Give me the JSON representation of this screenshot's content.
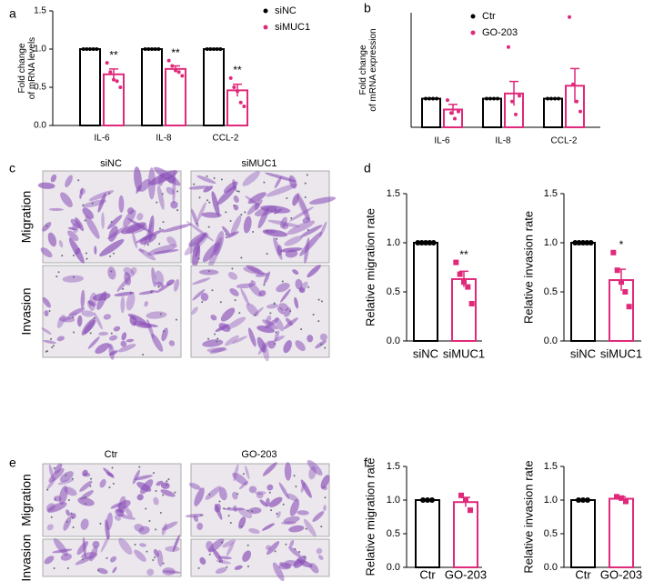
{
  "panel_letters": [
    "a",
    "b",
    "c",
    "d",
    "e",
    "f"
  ],
  "micrographs": [
    {
      "columns": [
        "siNC",
        "siMUC1"
      ],
      "rows": [
        "Migration",
        "Invasion"
      ]
    },
    {
      "columns": [
        "Ctr",
        "GO-203"
      ],
      "rows": [
        "Migration",
        "Invasion"
      ]
    }
  ],
  "chart_data": [
    {
      "type": "bar",
      "ylabel": [
        "Fold change",
        "of  mRNA levels"
      ],
      "categories": [
        "IL-6",
        "IL-8",
        "CCL-2"
      ],
      "series": [
        {
          "name": "siNC",
          "color": "#000000",
          "values": [
            1.0,
            1.0,
            1.0
          ],
          "points": [
            [
              1,
              1,
              1,
              1,
              1
            ],
            [
              1,
              1,
              1,
              1,
              1
            ],
            [
              1,
              1,
              1,
              1,
              1
            ]
          ]
        },
        {
          "name": "siMUC1",
          "color": "#e0297a",
          "values": [
            0.67,
            0.74,
            0.46
          ],
          "errors": [
            0.07,
            0.04,
            0.08
          ],
          "annotations": [
            "**",
            "**",
            "**"
          ],
          "points": [
            [
              0.82,
              0.7,
              0.6,
              0.58,
              0.5
            ],
            [
              0.85,
              0.78,
              0.72,
              0.7,
              0.65
            ],
            [
              0.62,
              0.5,
              0.45,
              0.3,
              0.25
            ]
          ]
        }
      ],
      "ylim": [
        0,
        1.5
      ],
      "yticks": [
        {
          "value": 0,
          "label": "0.0"
        },
        0.5,
        {
          "value": 1,
          "label": "1.0"
        },
        1.5
      ]
    },
    {
      "type": "bar",
      "ylabel": [
        "Fold change",
        "of mRNA expression"
      ],
      "categories": [
        "IL-6",
        "IL-8",
        "CCL-2"
      ],
      "series": [
        {
          "name": "Ctr",
          "color": "#000000",
          "values": [
            1.0,
            1.0,
            1.0
          ],
          "points": [
            [
              1,
              1,
              1,
              1
            ],
            [
              1,
              1,
              1,
              1
            ],
            [
              1,
              1,
              1,
              1
            ]
          ]
        },
        {
          "name": "GO-203",
          "color": "#e0297a",
          "values": [
            0.62,
            1.18,
            1.45
          ],
          "errors": [
            0.18,
            0.42,
            0.6
          ],
          "points": [
            [
              0.95,
              0.5,
              0.3,
              0.55
            ],
            [
              2.8,
              0.9,
              0.45,
              1.1
            ],
            [
              3.85,
              1.5,
              0.9,
              0.55
            ]
          ]
        }
      ],
      "ylim": [
        0,
        4
      ]
    },
    {
      "type": "bar",
      "ylabel": [
        "Relative migration rate"
      ],
      "categories": [
        "siNC",
        "siMUC1"
      ],
      "values": [
        1.0,
        0.63
      ],
      "errors": [
        null,
        0.08
      ],
      "colors": [
        "#000000",
        "#e0297a"
      ],
      "annotations": [
        null,
        "**"
      ],
      "points": [
        [
          1,
          1,
          1,
          1,
          1
        ],
        [
          0.8,
          0.68,
          0.6,
          0.55,
          0.38
        ]
      ],
      "ylim": [
        0,
        1.5
      ],
      "yticks": [
        {
          "value": 0,
          "label": "0.0"
        },
        0.5,
        {
          "value": 1,
          "label": "1.0"
        },
        1.5
      ]
    },
    {
      "type": "bar",
      "ylabel": [
        "Relative invasion rate"
      ],
      "categories": [
        "siNC",
        "siMUC1"
      ],
      "values": [
        1.0,
        0.62
      ],
      "errors": [
        null,
        0.11
      ],
      "colors": [
        "#000000",
        "#e0297a"
      ],
      "annotations": [
        null,
        "*"
      ],
      "points": [
        [
          1,
          1,
          1,
          1,
          1
        ],
        [
          0.9,
          0.72,
          0.6,
          0.5,
          0.35
        ]
      ],
      "ylim": [
        0,
        1.5
      ],
      "yticks": [
        {
          "value": 0,
          "label": "0.0"
        },
        0.5,
        {
          "value": 1,
          "label": "1.0"
        },
        1.5
      ]
    },
    {
      "type": "bar",
      "ylabel": [
        "Relative migration rate"
      ],
      "categories": [
        "Ctr",
        "GO-203"
      ],
      "values": [
        1.0,
        0.97
      ],
      "errors": [
        null,
        0.07
      ],
      "colors": [
        "#000000",
        "#e0297a"
      ],
      "points": [
        [
          1,
          1,
          1
        ],
        [
          1.07,
          1.0,
          0.85
        ]
      ],
      "ylim": [
        0,
        1.5
      ],
      "yticks": [
        {
          "value": 0,
          "label": "0.0"
        },
        0.5,
        {
          "value": 1,
          "label": "1.0"
        },
        1.5
      ]
    },
    {
      "type": "bar",
      "ylabel": [
        "Relative invasion rate"
      ],
      "categories": [
        "Ctr",
        "GO-203"
      ],
      "values": [
        1.0,
        1.02
      ],
      "errors": [
        null,
        0.03
      ],
      "colors": [
        "#000000",
        "#e0297a"
      ],
      "points": [
        [
          1,
          1,
          1
        ],
        [
          1.05,
          1.03,
          0.98
        ]
      ],
      "ylim": [
        0,
        1.5
      ],
      "yticks": [
        {
          "value": 0,
          "label": "0.0"
        },
        0.5,
        {
          "value": 1,
          "label": "1.0"
        },
        1.5
      ]
    }
  ]
}
